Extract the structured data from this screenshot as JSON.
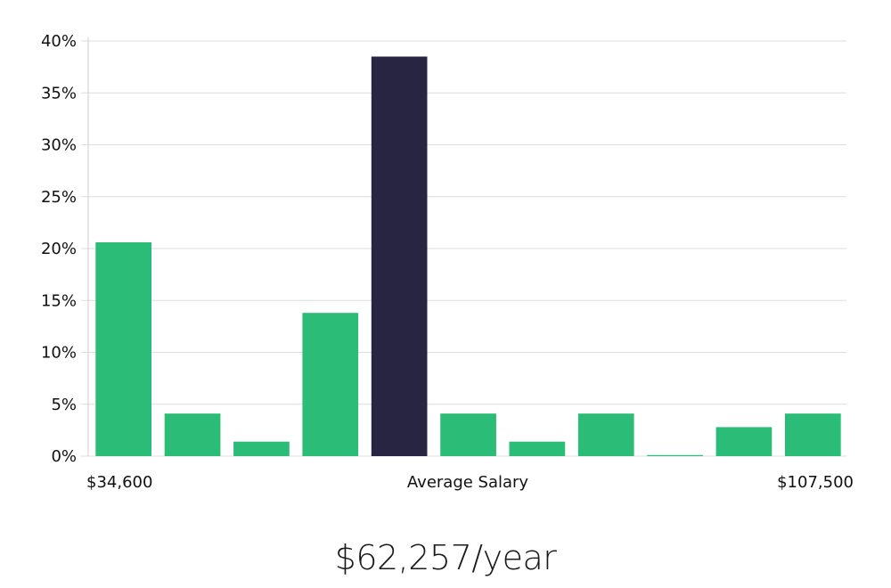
{
  "chart_data": {
    "type": "bar",
    "title": "",
    "xlabel": "",
    "ylabel": "",
    "ylim": [
      0,
      40
    ],
    "y_ticks": [
      "0%",
      "5%",
      "10%",
      "15%",
      "20%",
      "25%",
      "30%",
      "35%",
      "40%"
    ],
    "grid": true,
    "x_labels": {
      "left": "$34,600",
      "center": "Average Salary",
      "right": "$107,500"
    },
    "values": [
      20.6,
      4.1,
      1.4,
      13.8,
      38.5,
      4.1,
      1.4,
      4.1,
      0.1,
      2.8,
      4.1
    ],
    "highlight_index": 4,
    "colors": {
      "bar": "#2bbd77",
      "highlight": "#272541",
      "grid": "#dddddd",
      "axis": "#cccccc"
    }
  },
  "average_salary": "$62,257/year"
}
